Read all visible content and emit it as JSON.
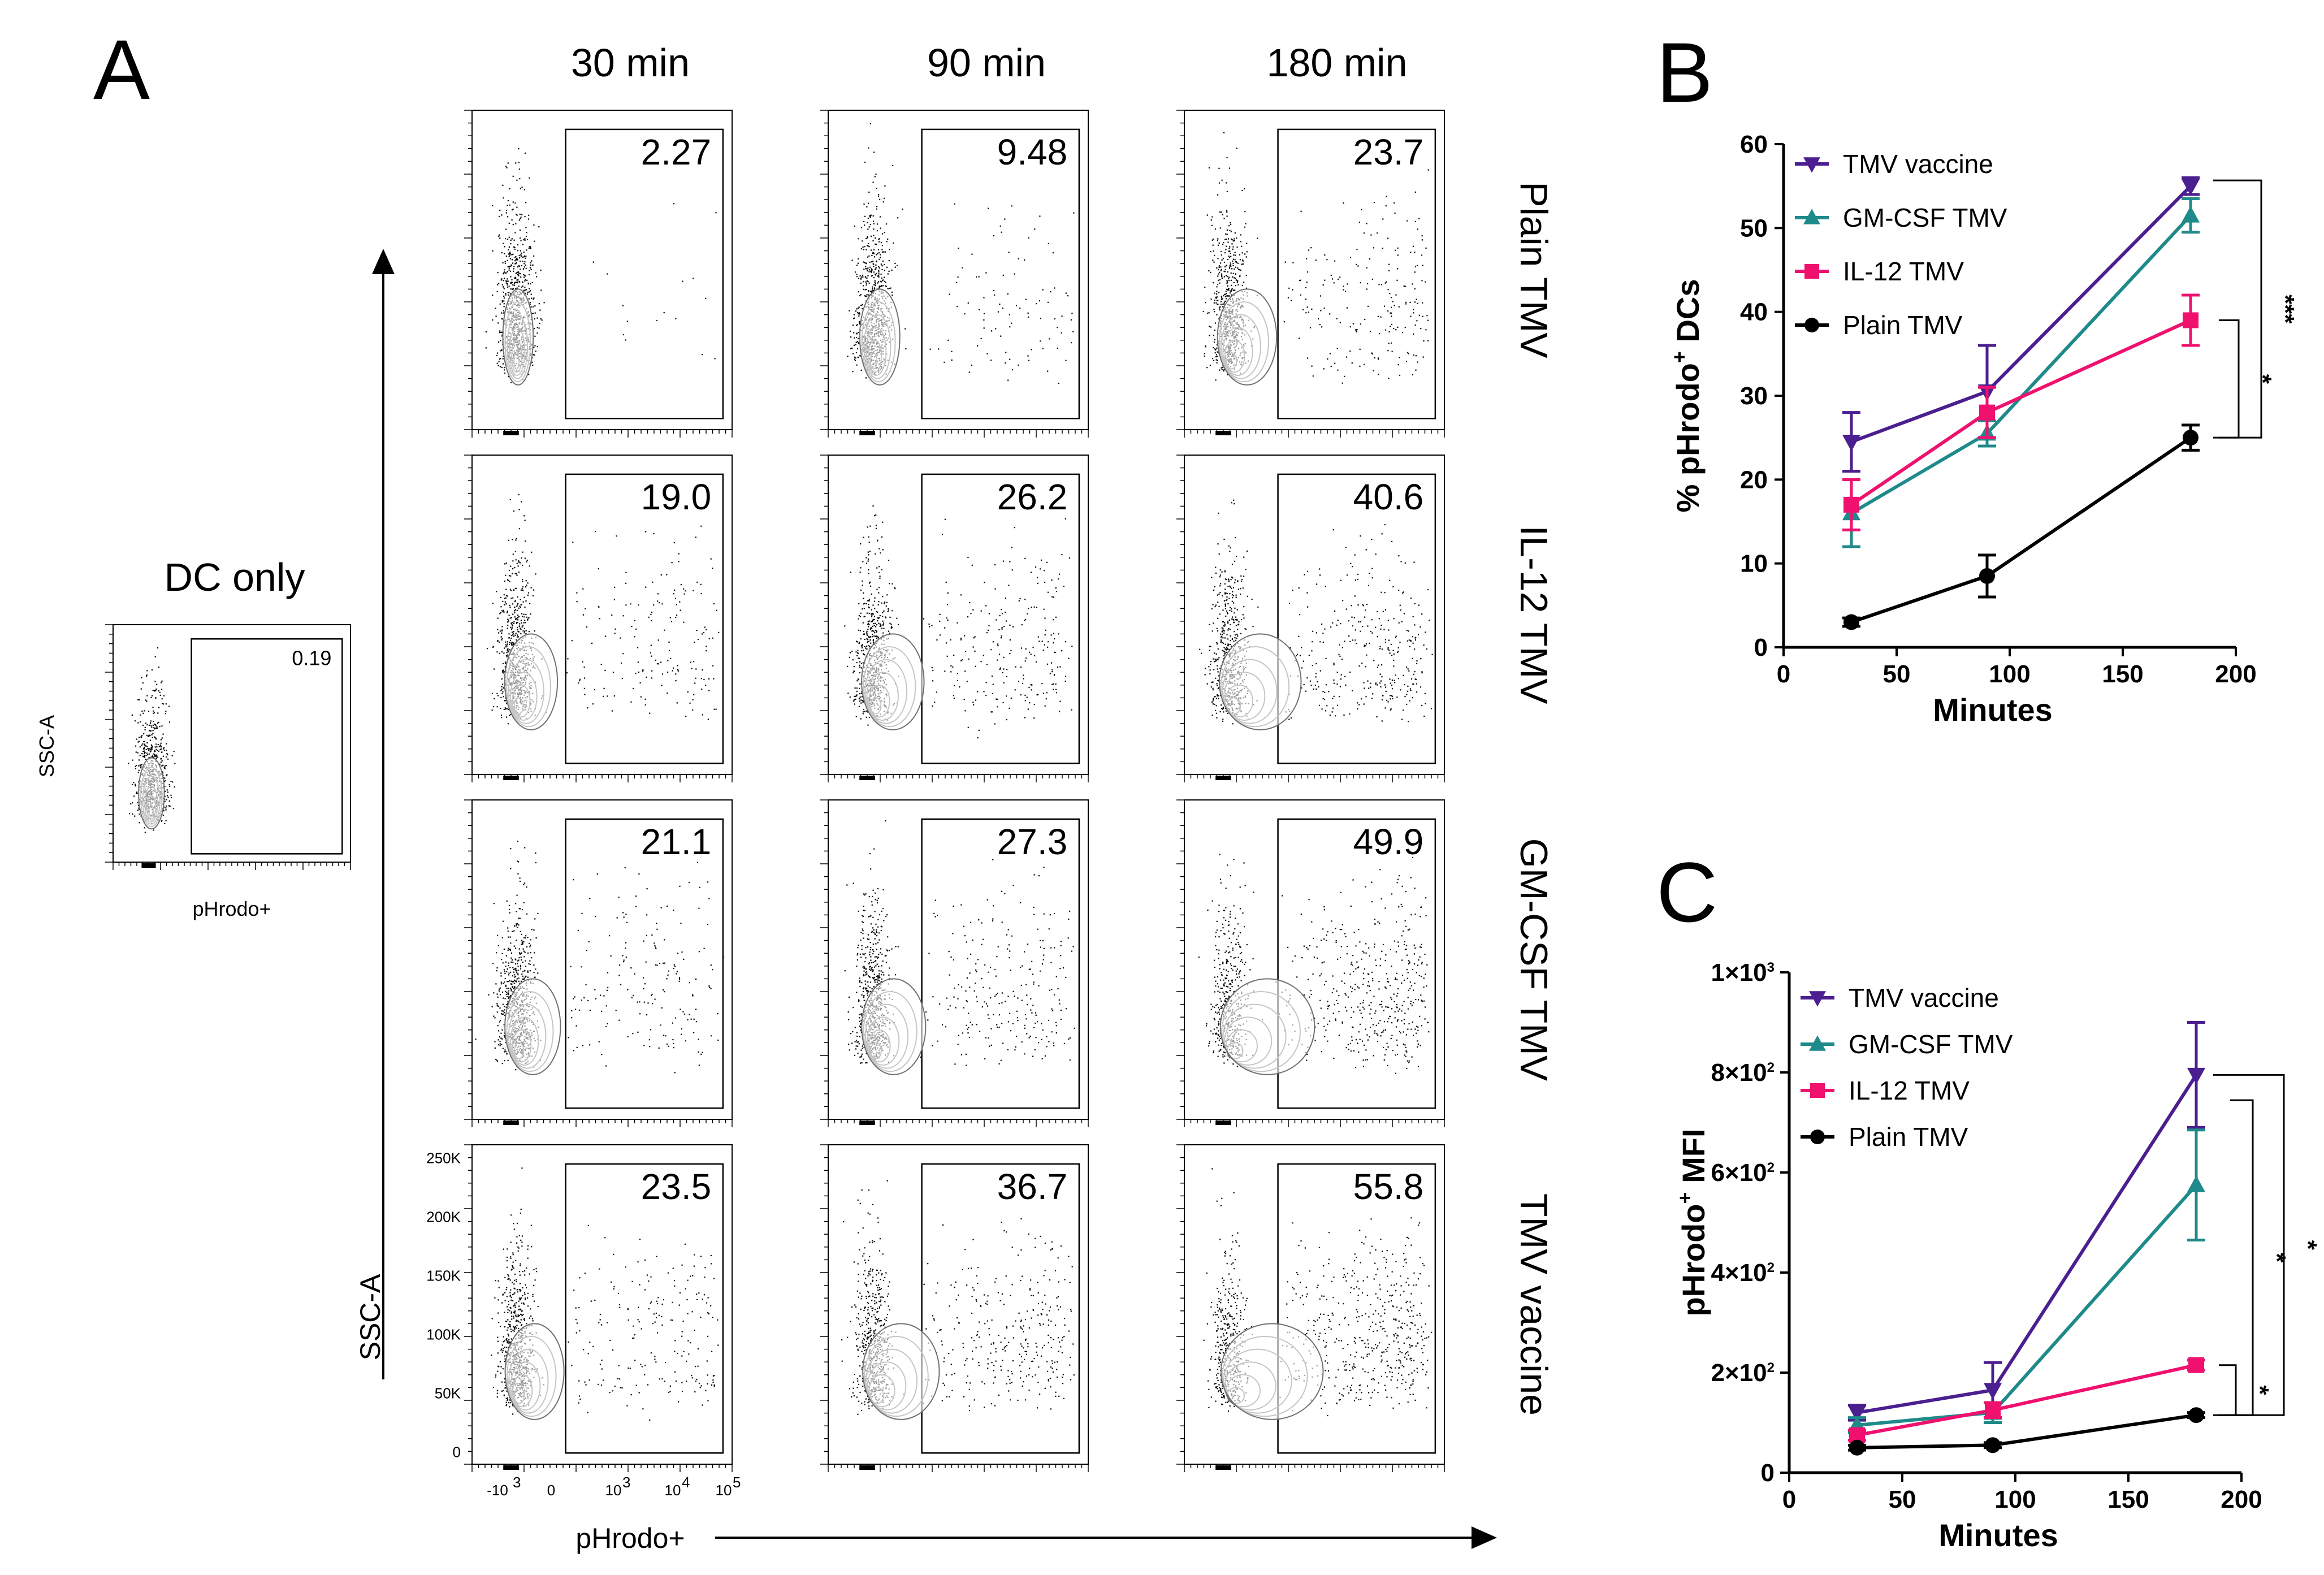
{
  "panel_a": {
    "letter": "A",
    "column_titles": [
      "30 min",
      "90 min",
      "180 min"
    ],
    "row_labels": [
      "Plain TMV",
      "IL-12 TMV",
      "GM-CSF TMV",
      "TMV vaccine"
    ],
    "gate_percentages": [
      [
        "2.27",
        "9.48",
        "23.7"
      ],
      [
        "19.0",
        "26.2",
        "40.6"
      ],
      [
        "21.1",
        "27.3",
        "49.9"
      ],
      [
        "23.5",
        "36.7",
        "55.8"
      ]
    ],
    "dc_only": {
      "title": "DC only",
      "percentage": "0.19",
      "xlabel": "pHrodo+",
      "ylabel": "SSC-A"
    },
    "y_ticks": [
      "250K",
      "200K",
      "150K",
      "100K",
      "50K",
      "0"
    ],
    "x_tick_zero": "0",
    "x_tick_neg": "-10",
    "x_tick_neg_exp": "3",
    "x_tick_pos": [
      "10",
      "10",
      "10"
    ],
    "x_tick_pos_exp": [
      "3",
      "4",
      "5"
    ],
    "x_axis_label": "pHrodo+",
    "y_axis_label": "SSC-A"
  },
  "chart_data": [
    {
      "panel": "B",
      "type": "line",
      "ylabel_prefix": "% pHrodo",
      "ylabel_sup": "+",
      "ylabel_suffix": " DCs",
      "xlabel": "Minutes",
      "x": [
        30,
        90,
        180
      ],
      "xlim": [
        0,
        200
      ],
      "ylim": [
        0,
        60
      ],
      "x_ticks": [
        0,
        50,
        100,
        150,
        200
      ],
      "y_ticks": [
        0,
        10,
        20,
        30,
        40,
        50,
        60
      ],
      "series": [
        {
          "name": "TMV vaccine",
          "color": "#4b1f8f",
          "marker": "triangle-down",
          "values": [
            24.5,
            30.5,
            55
          ],
          "errors": [
            3.5,
            5.5,
            1
          ]
        },
        {
          "name": "GM-CSF TMV",
          "color": "#1f8a8a",
          "marker": "triangle-up",
          "values": [
            16,
            25.5,
            51.5
          ],
          "errors": [
            4,
            1.5,
            2
          ]
        },
        {
          "name": "IL-12 TMV",
          "color": "#f0106e",
          "marker": "square",
          "values": [
            17,
            28,
            39
          ],
          "errors": [
            3,
            3,
            3
          ]
        },
        {
          "name": "Plain TMV",
          "color": "#000000",
          "marker": "circle",
          "values": [
            3,
            8.5,
            25
          ],
          "errors": [
            0.5,
            2.5,
            1.5
          ]
        }
      ],
      "significance": [
        {
          "label": "***",
          "between": [
            "TMV vaccine",
            "Plain TMV"
          ]
        },
        {
          "label": "*",
          "between": [
            "IL-12 TMV",
            "Plain TMV"
          ]
        }
      ]
    },
    {
      "panel": "C",
      "type": "line",
      "ylabel_prefix": "pHrodo",
      "ylabel_sup": "+",
      "ylabel_suffix": " MFI",
      "xlabel": "Minutes",
      "x": [
        30,
        90,
        180
      ],
      "xlim": [
        0,
        200
      ],
      "ylim": [
        0,
        1000
      ],
      "x_ticks": [
        0,
        50,
        100,
        150,
        200
      ],
      "y_ticks": [
        0,
        200,
        400,
        600,
        800,
        1000
      ],
      "y_tick_labels": [
        {
          "base": "0",
          "exp": ""
        },
        {
          "base": "2×10",
          "exp": "2"
        },
        {
          "base": "4×10",
          "exp": "2"
        },
        {
          "base": "6×10",
          "exp": "2"
        },
        {
          "base": "8×10",
          "exp": "2"
        },
        {
          "base": "1×10",
          "exp": "3"
        }
      ],
      "series": [
        {
          "name": "TMV vaccine",
          "color": "#4b1f8f",
          "marker": "triangle-down",
          "values": [
            120,
            165,
            795
          ],
          "errors": [
            15,
            55,
            105
          ]
        },
        {
          "name": "GM-CSF TMV",
          "color": "#1f8a8a",
          "marker": "triangle-up",
          "values": [
            95,
            120,
            575
          ],
          "errors": [
            15,
            20,
            110
          ]
        },
        {
          "name": "IL-12 TMV",
          "color": "#f0106e",
          "marker": "square",
          "values": [
            75,
            125,
            215
          ],
          "errors": [
            10,
            15,
            10
          ]
        },
        {
          "name": "Plain TMV",
          "color": "#000000",
          "marker": "circle",
          "values": [
            50,
            55,
            115
          ],
          "errors": [
            5,
            5,
            5
          ]
        }
      ],
      "significance": [
        {
          "label": "*",
          "between": [
            "TMV vaccine",
            "Plain TMV"
          ]
        },
        {
          "label": "*",
          "between": [
            "GM-CSF TMV",
            "Plain TMV"
          ]
        },
        {
          "label": "*",
          "between": [
            "IL-12 TMV",
            "Plain TMV"
          ]
        }
      ]
    }
  ]
}
